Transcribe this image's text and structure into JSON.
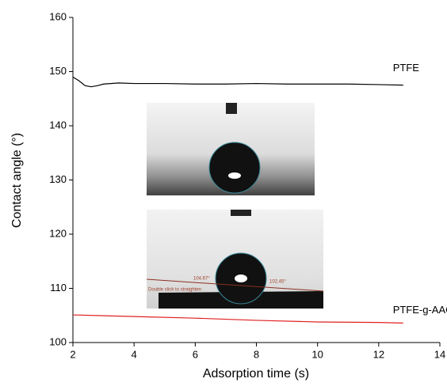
{
  "chart_data": {
    "type": "line",
    "xlabel": "Adsorption time (s)",
    "ylabel": "Contact angle (°)",
    "xlim": [
      2,
      14
    ],
    "xticks": [
      2,
      4,
      6,
      8,
      10,
      12,
      14
    ],
    "ylim": [
      100,
      160
    ],
    "yticks": [
      100,
      110,
      120,
      130,
      140,
      150,
      160
    ],
    "series": [
      {
        "name": "PTFE",
        "color": "#000000",
        "x": [
          2,
          2.2,
          2.4,
          2.6,
          2.8,
          3,
          3.5,
          4,
          5,
          6,
          7,
          8,
          9,
          10,
          11,
          12,
          12.8
        ],
        "values": [
          149,
          148.3,
          147.4,
          147.2,
          147.4,
          147.7,
          147.9,
          147.8,
          147.8,
          147.7,
          147.7,
          147.8,
          147.7,
          147.7,
          147.7,
          147.6,
          147.5
        ]
      },
      {
        "name": "PTFE-g-AAC",
        "color": "#e02020",
        "x": [
          2,
          4,
          6,
          8,
          10,
          12,
          12.8
        ],
        "values": [
          105.1,
          104.8,
          104.5,
          104.1,
          103.8,
          103.7,
          103.6
        ]
      }
    ],
    "annotations": [
      "104.67°",
      "102.45°",
      "Double click to straighten"
    ]
  }
}
